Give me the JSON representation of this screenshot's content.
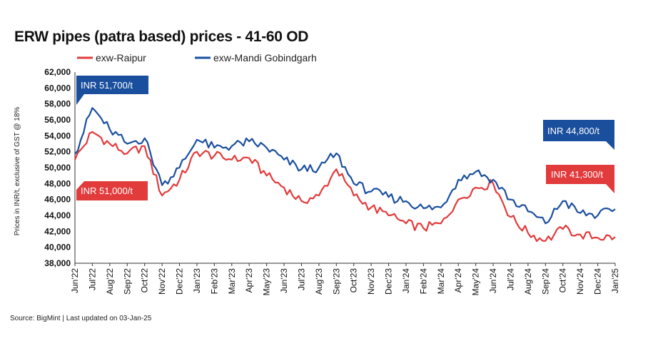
{
  "chart_data": {
    "type": "line",
    "title": "ERW pipes (patra based) prices - 41-60 OD",
    "ylabel": "Prices in INR/t, exclusive of GST @ 18%",
    "xlabel": "",
    "ylim": [
      38000,
      62000
    ],
    "yticks": [
      38000,
      40000,
      42000,
      44000,
      46000,
      48000,
      50000,
      52000,
      54000,
      56000,
      58000,
      60000,
      62000
    ],
    "ytick_labels": [
      "38,000",
      "40,000",
      "42,000",
      "44,000",
      "46,000",
      "48,000",
      "50,000",
      "52,000",
      "54,000",
      "56,000",
      "58,000",
      "60,000",
      "62,000"
    ],
    "categories": [
      "Jun'22",
      "Jul'22",
      "Aug'22",
      "Sep'22",
      "Oct'22",
      "Nov'22",
      "Dec'22",
      "Jan'23",
      "Feb'23",
      "Mar'23",
      "Apr'23",
      "May'23",
      "Jun'23",
      "Jul'23",
      "Aug'23",
      "Sep'23",
      "Oct'23",
      "Nov'23",
      "Dec'23",
      "Jan'24",
      "Feb'24",
      "Mar'24",
      "Apr'24",
      "May'24",
      "Jun'24",
      "Jul'24",
      "Aug'24",
      "Sep'24",
      "Oct'24",
      "Nov'24",
      "Dec'24",
      "Jan'25"
    ],
    "grid": false,
    "legend": "top-left",
    "series": [
      {
        "name": "exw-Raipur",
        "color": "#e23b3b",
        "values": [
          51000,
          54500,
          53000,
          51800,
          52700,
          46500,
          48500,
          52000,
          51500,
          51000,
          51200,
          49000,
          47500,
          45800,
          46500,
          49800,
          46500,
          45000,
          44000,
          43000,
          42400,
          43000,
          46000,
          47500,
          48000,
          43800,
          41800,
          40800,
          42300,
          41600,
          41200,
          41300
        ]
      },
      {
        "name": "exw-Mandi Gobindgarh",
        "color": "#1a4f9e",
        "values": [
          51700,
          57500,
          54800,
          53000,
          53700,
          47800,
          50000,
          53500,
          52500,
          52700,
          53300,
          52500,
          51000,
          49800,
          50000,
          51800,
          48000,
          47000,
          46300,
          45800,
          44900,
          45000,
          48500,
          49500,
          48500,
          46000,
          44500,
          43000,
          45800,
          44300,
          44000,
          44800
        ]
      }
    ],
    "callouts": [
      {
        "text": "INR 51,700/t",
        "color": "#1a4f9e"
      },
      {
        "text": "INR 51,000/t",
        "color": "#e23b3b"
      },
      {
        "text": "INR 44,800/t",
        "color": "#1a4f9e"
      },
      {
        "text": "INR 41,300/t",
        "color": "#e23b3b"
      }
    ]
  },
  "source": "Source: BigMint  | Last updated on 03-Jan-25"
}
